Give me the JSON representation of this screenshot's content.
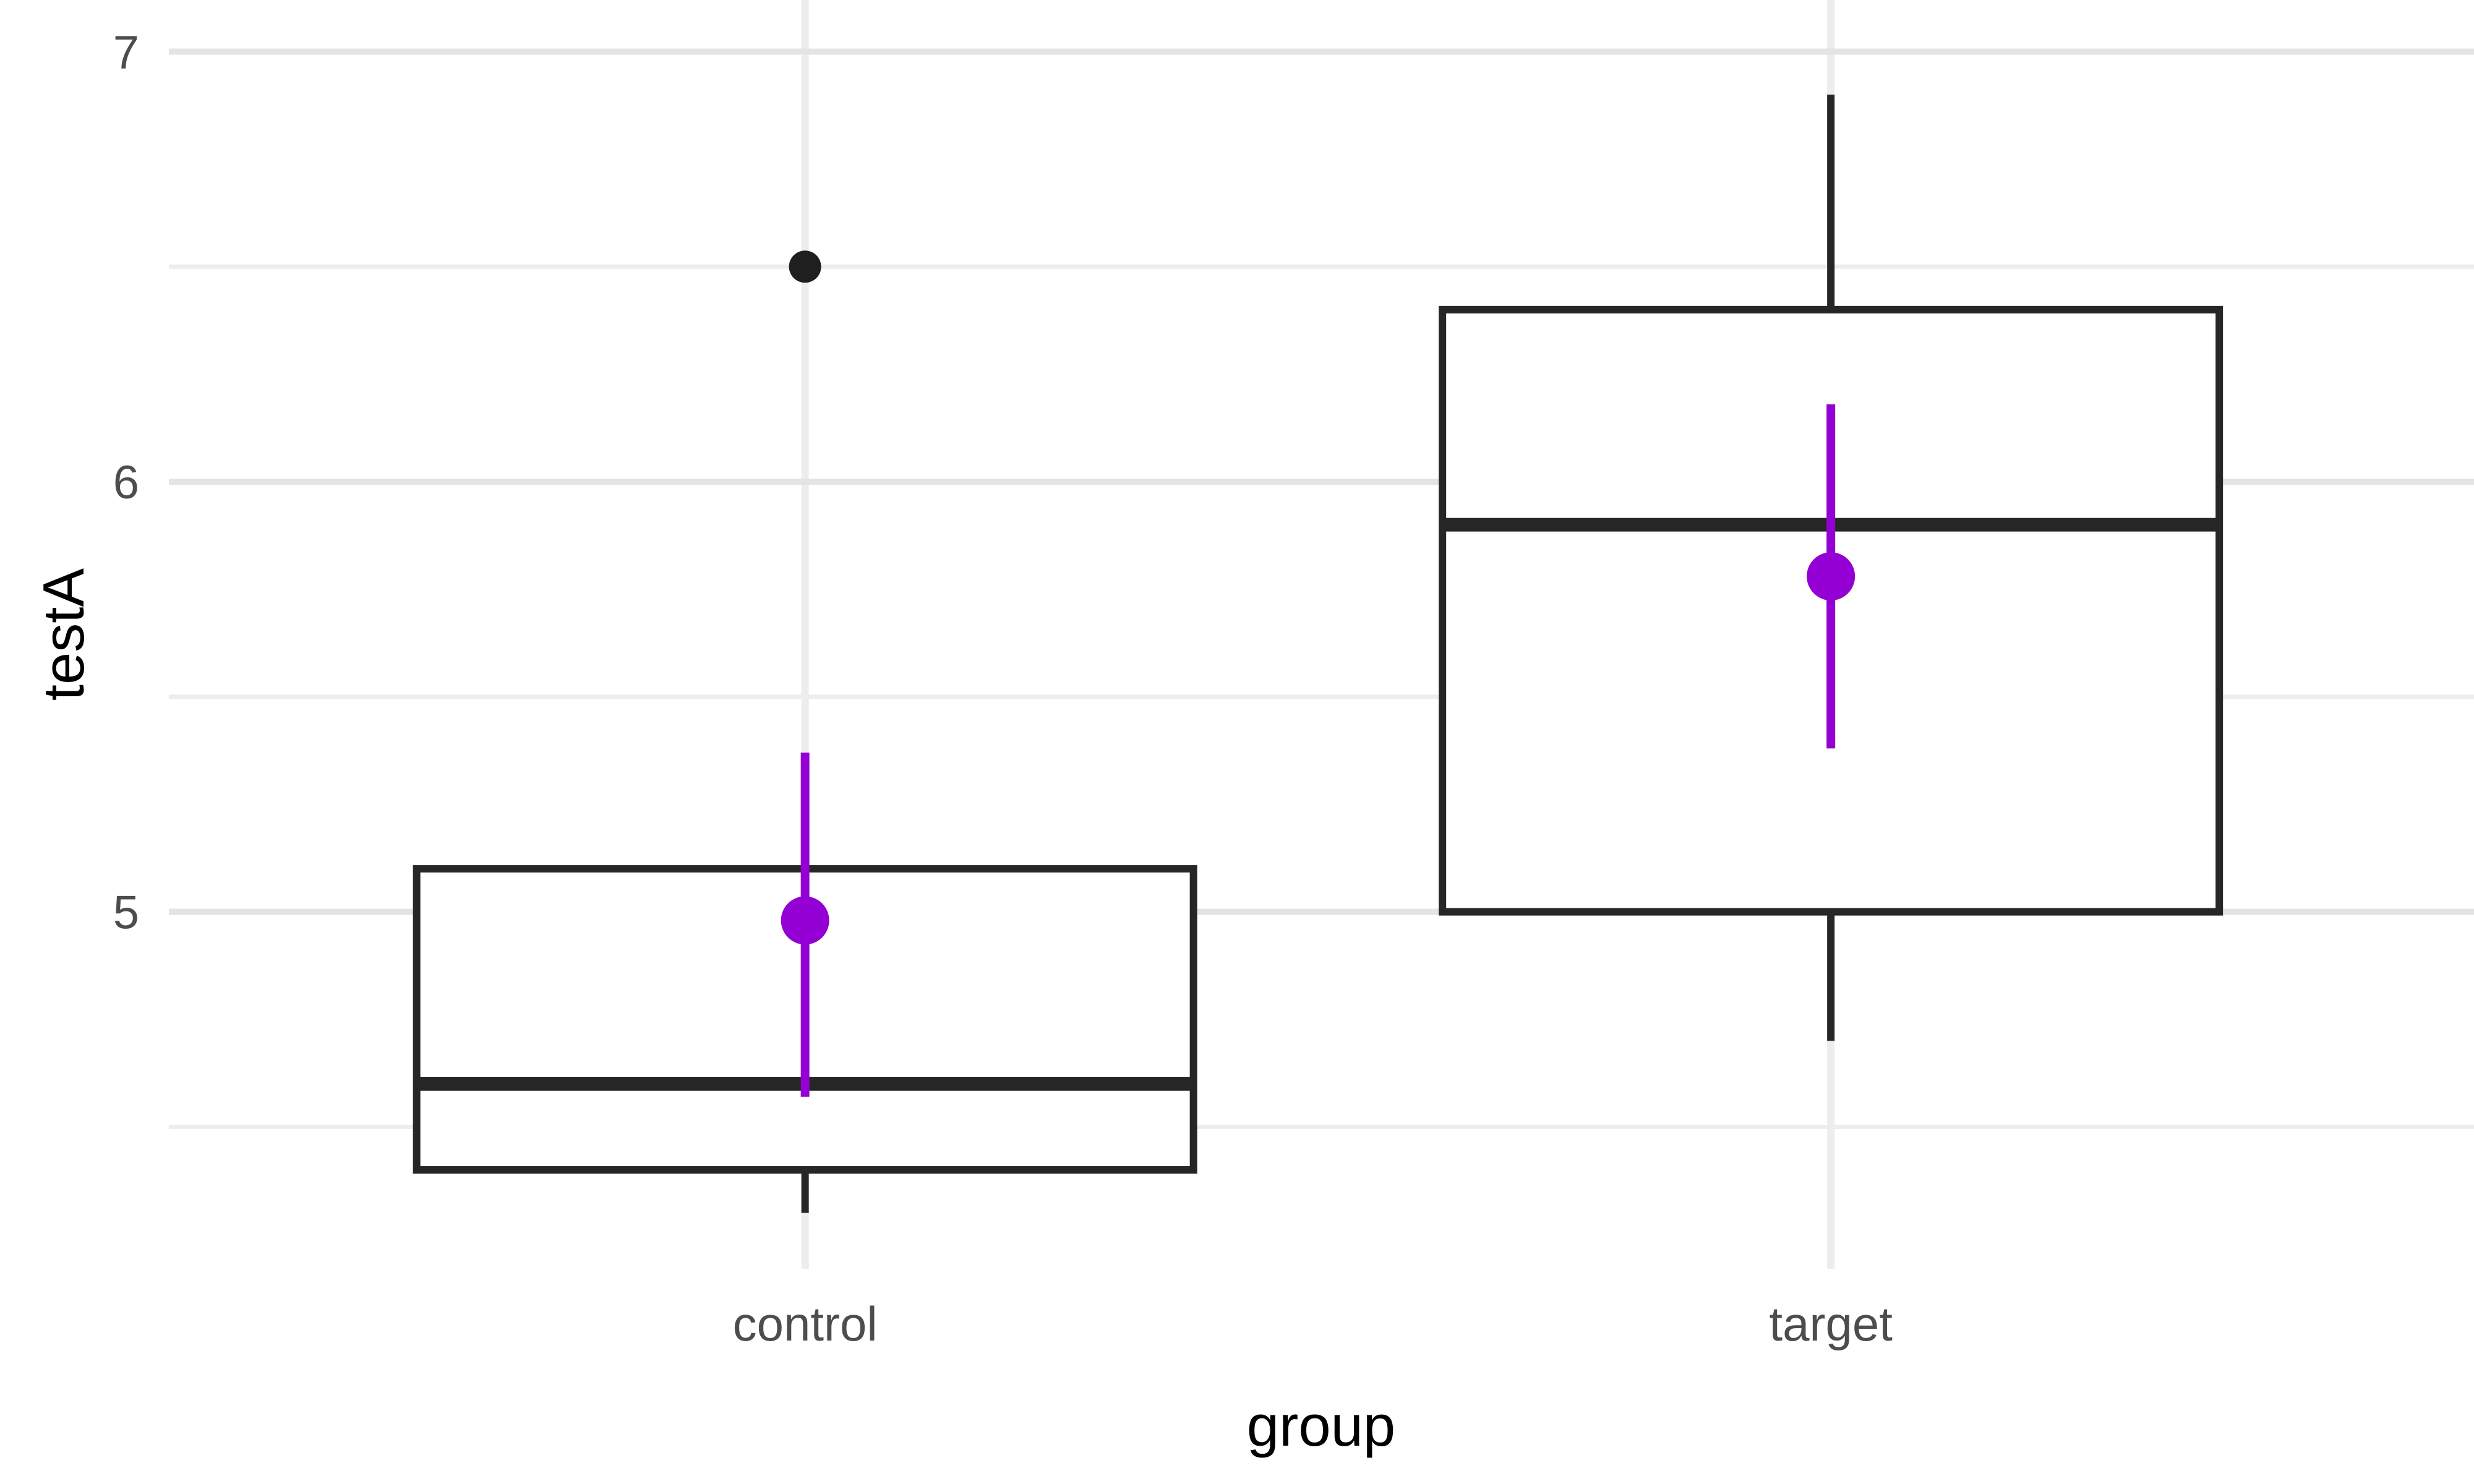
{
  "chart_data": {
    "type": "boxplot",
    "title": "",
    "xlabel": "group",
    "ylabel": "testA",
    "categories": [
      "control",
      "target"
    ],
    "y_ticks": [
      5,
      6,
      7
    ],
    "y_minor_ticks": [
      4.5,
      5.5,
      6.5
    ],
    "ylim": [
      4.17,
      7.12
    ],
    "grid": "on",
    "legend": "none",
    "series": [
      {
        "group": "control",
        "whisker_low": 4.3,
        "q1": 4.4,
        "median": 4.6,
        "q3": 5.1,
        "whisker_high": 5.1,
        "outliers": [
          6.5
        ],
        "mean": 4.98,
        "ci_low": 4.57,
        "ci_high": 5.37
      },
      {
        "group": "target",
        "whisker_low": 4.7,
        "q1": 5.0,
        "median": 5.9,
        "q3": 6.4,
        "whisker_high": 6.9,
        "outliers": [],
        "mean": 5.78,
        "ci_low": 5.38,
        "ci_high": 6.18
      }
    ],
    "colors": {
      "background": "#ffffff",
      "box_border": "#262626",
      "box_fill": "#ffffff",
      "median": "#262626",
      "whisker": "#262626",
      "outlier": "#1f1f1f",
      "mean_point": "#9400d3",
      "error_bar": "#9400d3",
      "grid_major": "#e4e4e4",
      "grid_minor": "#ededed",
      "tick_label": "#4d4d4d",
      "axis_title": "#000000"
    }
  }
}
